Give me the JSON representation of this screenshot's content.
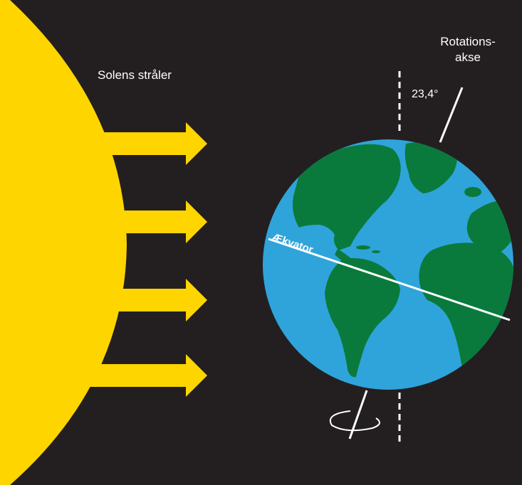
{
  "labels": {
    "sun_rays": "Solens stråler",
    "rotation_axis_line1": "Rotations-",
    "rotation_axis_line2": "akse",
    "tilt_angle": "23,4°",
    "equator": "Ækvator"
  },
  "colors": {
    "background": "#231f20",
    "sun": "#ffd500",
    "ocean": "#2fa4da",
    "land": "#0a7a3c",
    "lines": "#ffffff"
  }
}
